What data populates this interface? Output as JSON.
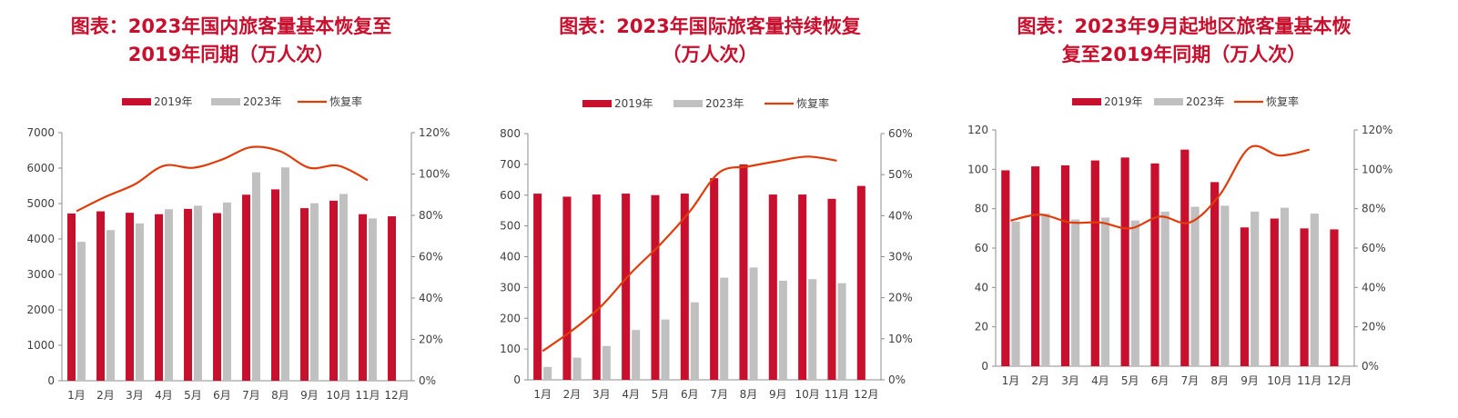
{
  "colors": {
    "bar2019": "#c8102e",
    "bar2023": "#c0c0c0",
    "line": "#e03c0a",
    "title": "#c8102e"
  },
  "chart_data": [
    {
      "type": "bar",
      "title_lines": [
        "图表：2023年国内旅客量基本恢复至",
        "2019年同期（万人次）"
      ],
      "categories": [
        "1月",
        "2月",
        "3月",
        "4月",
        "5月",
        "6月",
        "7月",
        "8月",
        "9月",
        "10月",
        "11月",
        "12月"
      ],
      "series": [
        {
          "name": "2019年",
          "type": "bar",
          "axis": "left",
          "values": [
            4720,
            4780,
            4740,
            4700,
            4850,
            4730,
            5250,
            5400,
            4870,
            5080,
            4700,
            4640
          ]
        },
        {
          "name": "2023年",
          "type": "bar",
          "axis": "left",
          "values": [
            3920,
            4250,
            4440,
            4840,
            4940,
            5030,
            5880,
            6020,
            5010,
            5270,
            4580,
            null
          ]
        },
        {
          "name": "恢复率",
          "type": "line",
          "axis": "right",
          "values": [
            82,
            89,
            95,
            104,
            103,
            107,
            113,
            111,
            103,
            104,
            97,
            null
          ]
        }
      ],
      "ylim": [
        0,
        7000
      ],
      "yticks": [
        0,
        1000,
        2000,
        3000,
        4000,
        5000,
        6000,
        7000
      ],
      "y2lim": [
        0,
        120
      ],
      "y2ticks": [
        "0%",
        "20%",
        "40%",
        "60%",
        "80%",
        "100%",
        "120%"
      ]
    },
    {
      "type": "bar",
      "title_lines": [
        "图表：2023年国际旅客量持续恢复",
        "（万人次）"
      ],
      "categories": [
        "1月",
        "2月",
        "3月",
        "4月",
        "5月",
        "6月",
        "7月",
        "8月",
        "9月",
        "10月",
        "11月",
        "12月"
      ],
      "series": [
        {
          "name": "2019年",
          "type": "bar",
          "axis": "left",
          "values": [
            605,
            595,
            602,
            605,
            600,
            605,
            655,
            700,
            602,
            602,
            588,
            630
          ]
        },
        {
          "name": "2023年",
          "type": "bar",
          "axis": "left",
          "values": [
            42,
            72,
            110,
            162,
            196,
            252,
            332,
            365,
            322,
            327,
            314,
            null
          ]
        },
        {
          "name": "恢复率",
          "type": "line",
          "axis": "right",
          "values": [
            7,
            12,
            18,
            26,
            33,
            41,
            50.5,
            52,
            53.3,
            54.4,
            53.4,
            null
          ]
        }
      ],
      "ylim": [
        0,
        800
      ],
      "yticks": [
        0,
        100,
        200,
        300,
        400,
        500,
        600,
        700,
        800
      ],
      "y2lim": [
        0,
        60
      ],
      "y2ticks": [
        "0%",
        "10%",
        "20%",
        "30%",
        "40%",
        "50%",
        "60%"
      ]
    },
    {
      "type": "bar",
      "title_lines": [
        "图表：2023年9月起地区旅客量基本恢",
        "复至2019年同期（万人次）"
      ],
      "categories": [
        "1月",
        "2月",
        "3月",
        "4月",
        "5月",
        "6月",
        "7月",
        "8月",
        "9月",
        "10月",
        "11月",
        "12月"
      ],
      "series": [
        {
          "name": "2019年",
          "type": "bar",
          "axis": "left",
          "values": [
            99.5,
            101.5,
            102,
            104.5,
            106,
            103,
            110,
            93.5,
            70.5,
            75,
            70,
            69.5
          ]
        },
        {
          "name": "2023年",
          "type": "bar",
          "axis": "left",
          "values": [
            73.5,
            77.5,
            74.5,
            75.5,
            74,
            78.5,
            81,
            81.5,
            78.5,
            80.5,
            77.5,
            null
          ]
        },
        {
          "name": "恢复率",
          "type": "line",
          "axis": "right",
          "values": [
            74,
            77,
            73,
            73,
            70,
            76,
            73,
            87,
            111,
            107,
            110,
            null
          ]
        }
      ],
      "ylim": [
        0,
        120
      ],
      "yticks": [
        0,
        20,
        40,
        60,
        80,
        100,
        120
      ],
      "y2lim": [
        0,
        120
      ],
      "y2ticks": [
        "0%",
        "20%",
        "40%",
        "60%",
        "80%",
        "100%",
        "120%"
      ]
    }
  ]
}
